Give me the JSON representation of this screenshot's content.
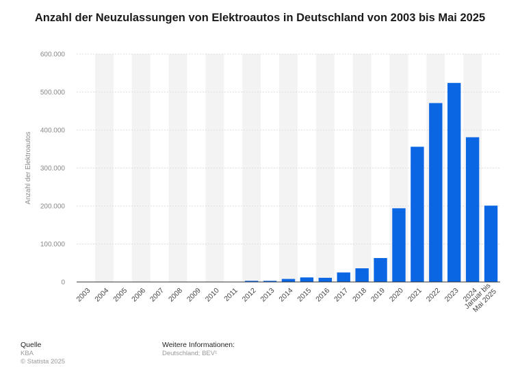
{
  "title": "Anzahl der Neuzulassungen von Elektroautos in Deutschland von 2003 bis Mai 2025",
  "footer": {
    "source_heading": "Quelle",
    "source_name": "KBA",
    "copyright": "© Statista 2025",
    "info_heading": "Weitere Informationen:",
    "info_text": "Deutschland; BEV¹"
  },
  "colors": {
    "bar": "#0b66e4",
    "band": "#f3f3f3",
    "grid": "#dcdcdc",
    "axis": "#333333"
  },
  "chart_data": {
    "type": "bar",
    "categories": [
      "2003",
      "2004",
      "2005",
      "2006",
      "2007",
      "2008",
      "2009",
      "2010",
      "2011",
      "2012",
      "2013",
      "2014",
      "2015",
      "2016",
      "2017",
      "2018",
      "2019",
      "2020",
      "2021",
      "2022",
      "2023",
      "2024",
      "Januar bis Mai 2025"
    ],
    "values": [
      0,
      0,
      0,
      0,
      0,
      0,
      0,
      0,
      0,
      3000,
      3000,
      8000,
      12000,
      11000,
      25000,
      36000,
      63000,
      194000,
      356000,
      471000,
      524000,
      381000,
      201000
    ],
    "ylabel": "Anzahl der Elektroautos",
    "ylim": [
      0,
      600000
    ],
    "yticks": [
      0,
      100000,
      200000,
      300000,
      400000,
      500000,
      600000
    ],
    "ytick_labels": [
      "0",
      "100.000",
      "200.000",
      "300.000",
      "400.000",
      "500.000",
      "600.000"
    ],
    "grid": true
  }
}
